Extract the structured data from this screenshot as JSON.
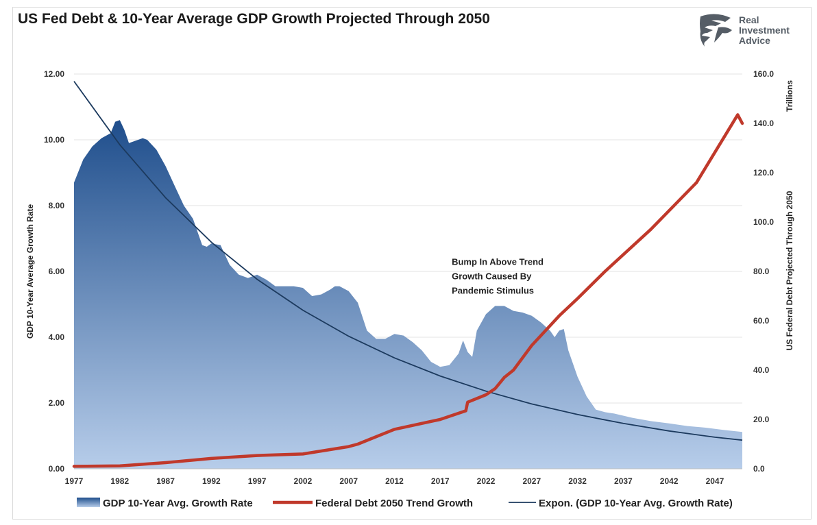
{
  "chart_data": {
    "type": "area",
    "title": "US Fed Debt & 10-Year Average GDP Growth Projected Through 2050",
    "ylabel_left": "GDP 10-Year Average Growth Rate",
    "ylabel_right": "US Federal Debt Projected Through 2050",
    "right_units": "Trillions",
    "ylim_left": [
      0,
      12
    ],
    "ylim_right": [
      0,
      160
    ],
    "xlim": [
      1977,
      2050
    ],
    "left_ticks": [
      "0.00",
      "2.00",
      "4.00",
      "6.00",
      "8.00",
      "10.00",
      "12.00"
    ],
    "right_ticks": [
      "0.0",
      "20.0",
      "40.0",
      "60.0",
      "80.0",
      "100.0",
      "120.0",
      "140.0",
      "160.0"
    ],
    "x_ticks": [
      "1977",
      "1982",
      "1987",
      "1992",
      "1997",
      "2002",
      "2007",
      "2012",
      "2017",
      "2022",
      "2027",
      "2032",
      "2037",
      "2042",
      "2047"
    ],
    "grid": true,
    "legend_position": "bottom",
    "annotation": [
      "Bump In Above Trend",
      "Growth Caused By",
      "Pandemic Stimulus"
    ],
    "annotation_at": [
      2025,
      6.2
    ],
    "series": [
      {
        "name": "GDP 10-Year Avg. Growth Rate",
        "type": "area",
        "axis": "left",
        "color_top": "#1f4e8c",
        "color_bottom": "#b7cdea",
        "x": [
          1977,
          1978,
          1979,
          1980,
          1981,
          1981.5,
          1982,
          1982.5,
          1983,
          1984,
          1984.5,
          1985,
          1986,
          1987,
          1988,
          1989,
          1990,
          1991,
          1991.5,
          1992,
          1993,
          1993.5,
          1994,
          1995,
          1996,
          1997,
          1998,
          1999,
          2000,
          2001,
          2002,
          2003,
          2004,
          2005,
          2005.5,
          2006,
          2007,
          2008,
          2009,
          2010,
          2011,
          2012,
          2013,
          2014,
          2015,
          2016,
          2017,
          2018,
          2019,
          2019.5,
          2020,
          2020.5,
          2021,
          2022,
          2023,
          2024,
          2025,
          2026,
          2027,
          2028,
          2029,
          2029.5,
          2030,
          2030.5,
          2031,
          2032,
          2033,
          2034,
          2035,
          2036,
          2038,
          2040,
          2042,
          2044,
          2046,
          2048,
          2050
        ],
        "values": [
          8.7,
          9.4,
          9.8,
          10.05,
          10.2,
          10.55,
          10.6,
          10.3,
          9.9,
          10.0,
          10.05,
          10.0,
          9.7,
          9.2,
          8.6,
          8.0,
          7.6,
          6.8,
          6.75,
          6.85,
          6.8,
          6.5,
          6.2,
          5.9,
          5.8,
          5.9,
          5.75,
          5.55,
          5.55,
          5.55,
          5.5,
          5.25,
          5.3,
          5.45,
          5.55,
          5.55,
          5.4,
          5.05,
          4.2,
          3.95,
          3.95,
          4.1,
          4.05,
          3.85,
          3.6,
          3.25,
          3.1,
          3.15,
          3.5,
          3.9,
          3.55,
          3.4,
          4.2,
          4.7,
          4.95,
          4.95,
          4.8,
          4.75,
          4.65,
          4.45,
          4.2,
          4.0,
          4.2,
          4.25,
          3.6,
          2.8,
          2.2,
          1.8,
          1.72,
          1.68,
          1.55,
          1.45,
          1.38,
          1.3,
          1.25,
          1.18,
          1.12
        ]
      },
      {
        "name": "Federal Debt 2050 Trend Growth",
        "type": "line",
        "axis": "right",
        "color": "#c0392b",
        "x": [
          1977,
          1982,
          1987,
          1992,
          1997,
          2002,
          2007,
          2008,
          2012,
          2017,
          2019.8,
          2020,
          2022,
          2023,
          2024,
          2025,
          2027,
          2030,
          2032,
          2035,
          2040,
          2045,
          2049.5,
          2050
        ],
        "values": [
          1,
          1.2,
          2.5,
          4.2,
          5.4,
          6.0,
          9.0,
          10.0,
          16.0,
          20.0,
          23.5,
          27.0,
          30.0,
          32.5,
          37.0,
          40.0,
          50.0,
          62.0,
          69.0,
          80.0,
          97.0,
          116.0,
          143.5,
          140.0
        ]
      },
      {
        "name": "Expon. (GDP 10-Year Avg. Growth Rate)",
        "type": "line",
        "axis": "left",
        "color": "#1c3a5e",
        "x": [
          1977,
          1982,
          1987,
          1992,
          1997,
          2002,
          2007,
          2012,
          2017,
          2022,
          2027,
          2032,
          2037,
          2042,
          2047,
          2050
        ],
        "values": [
          11.78,
          9.85,
          8.24,
          6.89,
          5.76,
          4.82,
          4.03,
          3.37,
          2.82,
          2.36,
          1.97,
          1.65,
          1.38,
          1.15,
          0.96,
          0.87
        ]
      }
    ]
  },
  "logo": {
    "lines": [
      "Real",
      "Investment",
      "Advice"
    ],
    "icon": "eagle-head-icon"
  }
}
